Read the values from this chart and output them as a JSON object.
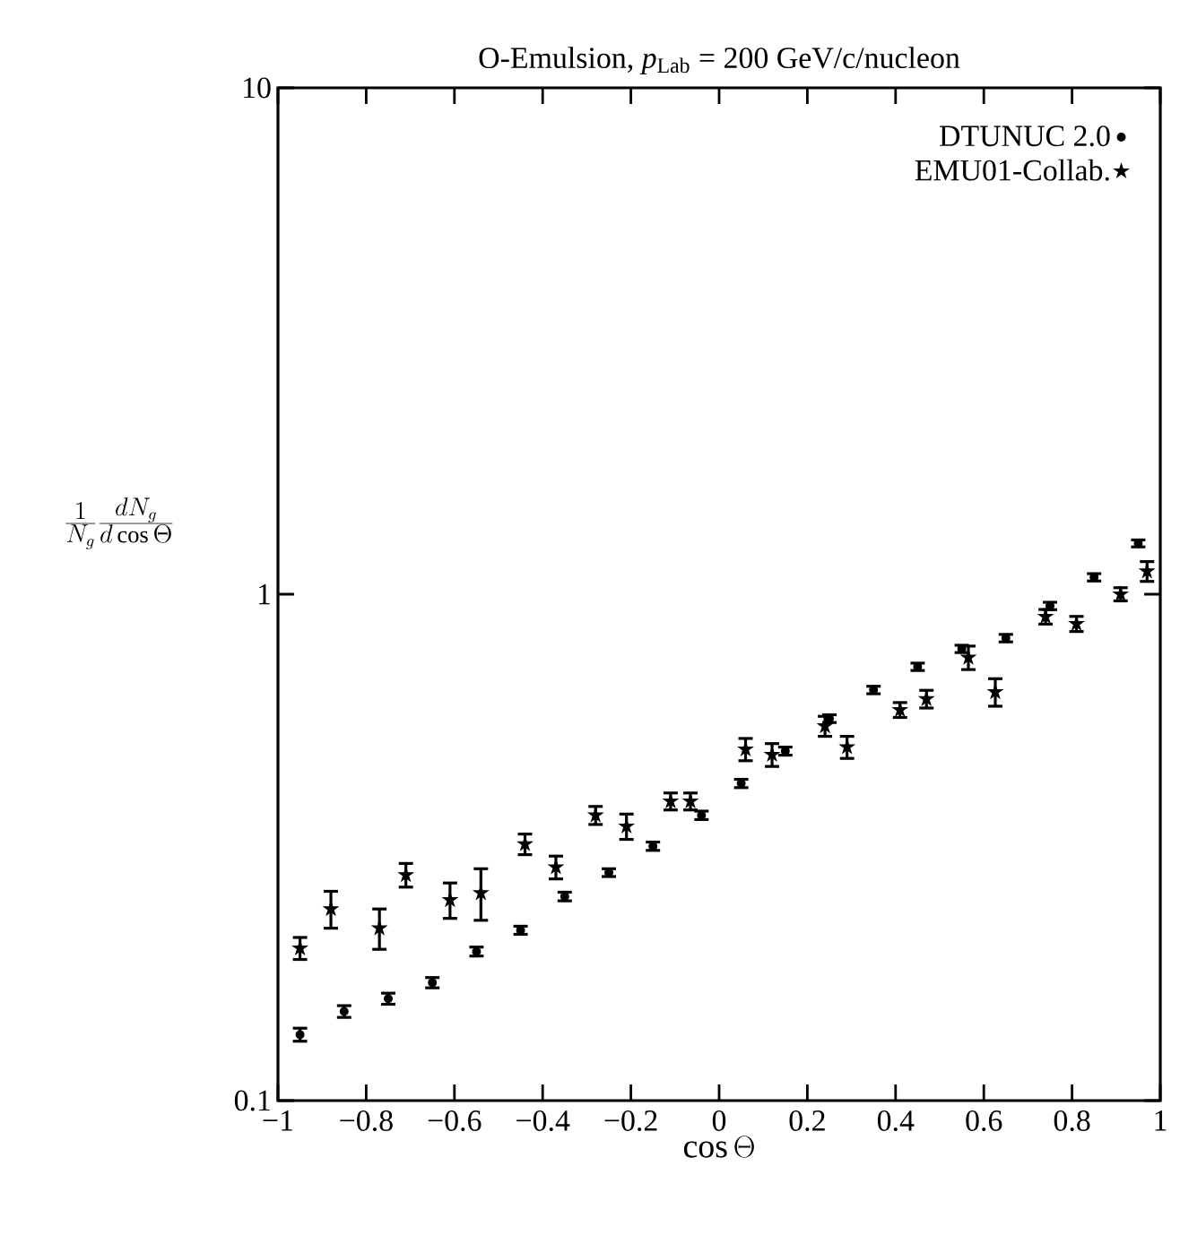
{
  "chart_data": {
    "type": "scatter",
    "title": "O-Emulsion, *p*$_{Lab}$ = 200 GeV/c/nucleon",
    "xlabel": "\\cos\\Theta",
    "ylabel": "\\frac{1}{N_g}\\frac{dN_g}{d\\cos\\Theta}",
    "log": "y",
    "xlim": [
      -1,
      1
    ],
    "ylim": [
      0.1,
      10
    ],
    "xticks": [
      {
        "value": -1,
        "label": "−1"
      },
      {
        "value": -0.8,
        "label": "−0.8"
      },
      {
        "value": -0.6,
        "label": "−0.6"
      },
      {
        "value": -0.4,
        "label": "−0.4"
      },
      {
        "value": -0.2,
        "label": "−0.2"
      },
      0,
      0.2,
      0.4,
      0.6,
      0.8,
      1
    ],
    "yticks": [
      0.1,
      1,
      10
    ],
    "grid": false,
    "legend": "top right",
    "series": [
      {
        "name": "DTUNUC 2.0",
        "color": "#000000",
        "marker": "circle",
        "x": [
          -0.95,
          -0.85,
          -0.75,
          -0.65,
          -0.55,
          -0.45,
          -0.35,
          -0.25,
          -0.15,
          -0.04,
          0.05,
          0.15,
          0.25,
          0.35,
          0.45,
          0.55,
          0.65,
          0.75,
          0.85,
          0.95
        ],
        "values": [
          0.135,
          0.15,
          0.159,
          0.171,
          0.197,
          0.217,
          0.253,
          0.282,
          0.318,
          0.366,
          0.423,
          0.49,
          0.568,
          0.647,
          0.719,
          0.78,
          0.819,
          0.948,
          1.08,
          1.26
        ],
        "errors": [
          0.004,
          0.004,
          0.004,
          0.004,
          0.004,
          0.004,
          0.005,
          0.005,
          0.006,
          0.007,
          0.008,
          0.009,
          0.01,
          0.011,
          0.012,
          0.013,
          0.014,
          0.016,
          0.018,
          0.02
        ]
      },
      {
        "name": "EMU01-Collab.",
        "color": "#000000",
        "marker": "star",
        "x": [
          -0.95,
          -0.88,
          -0.77,
          -0.71,
          -0.61,
          -0.54,
          -0.44,
          -0.37,
          -0.28,
          -0.21,
          -0.11,
          -0.065,
          0.06,
          0.12,
          0.24,
          0.29,
          0.41,
          0.47,
          0.565,
          0.626,
          0.74,
          0.81,
          0.91,
          0.97
        ],
        "values": [
          0.2,
          0.239,
          0.219,
          0.279,
          0.249,
          0.257,
          0.321,
          0.289,
          0.366,
          0.348,
          0.39,
          0.39,
          0.494,
          0.482,
          0.549,
          0.499,
          0.591,
          0.621,
          0.75,
          0.641,
          0.903,
          0.874,
          1.0,
          1.11
        ],
        "errors": [
          0.01,
          0.02,
          0.02,
          0.015,
          0.02,
          0.03,
          0.015,
          0.015,
          0.015,
          0.02,
          0.015,
          0.015,
          0.025,
          0.025,
          0.025,
          0.025,
          0.02,
          0.025,
          0.04,
          0.04,
          0.03,
          0.03,
          0.03,
          0.05
        ]
      }
    ]
  }
}
